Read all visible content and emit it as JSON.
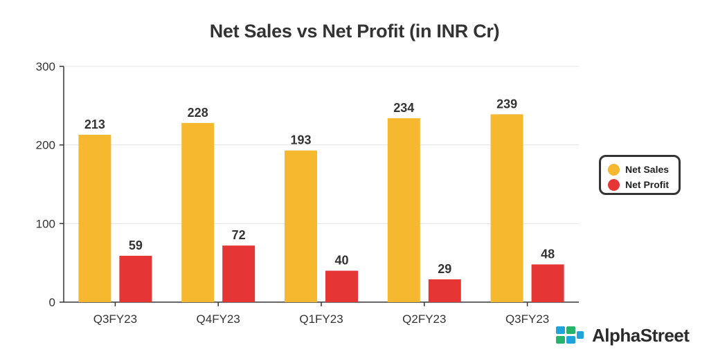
{
  "chart_data": {
    "type": "bar",
    "title": "Net Sales vs Net Profit (in INR Cr)",
    "categories": [
      "Q3FY23",
      "Q4FY23",
      "Q1FY23",
      "Q2FY23",
      "Q3FY23"
    ],
    "series": [
      {
        "name": "Net Sales",
        "values": [
          213,
          228,
          193,
          234,
          239
        ],
        "color": "#F5B82E"
      },
      {
        "name": "Net Profit",
        "values": [
          59,
          72,
          40,
          29,
          48
        ],
        "color": "#E53535"
      }
    ],
    "ylim": [
      0,
      300
    ],
    "yticks": [
      0,
      100,
      200,
      300
    ],
    "xlabel": "",
    "ylabel": "",
    "grid": true,
    "legend_position": "right"
  },
  "brand": {
    "name": "AlphaStreet",
    "icon": "alphastreet-logo-icon",
    "colors": [
      "#1FA3D8",
      "#27B36B"
    ]
  }
}
